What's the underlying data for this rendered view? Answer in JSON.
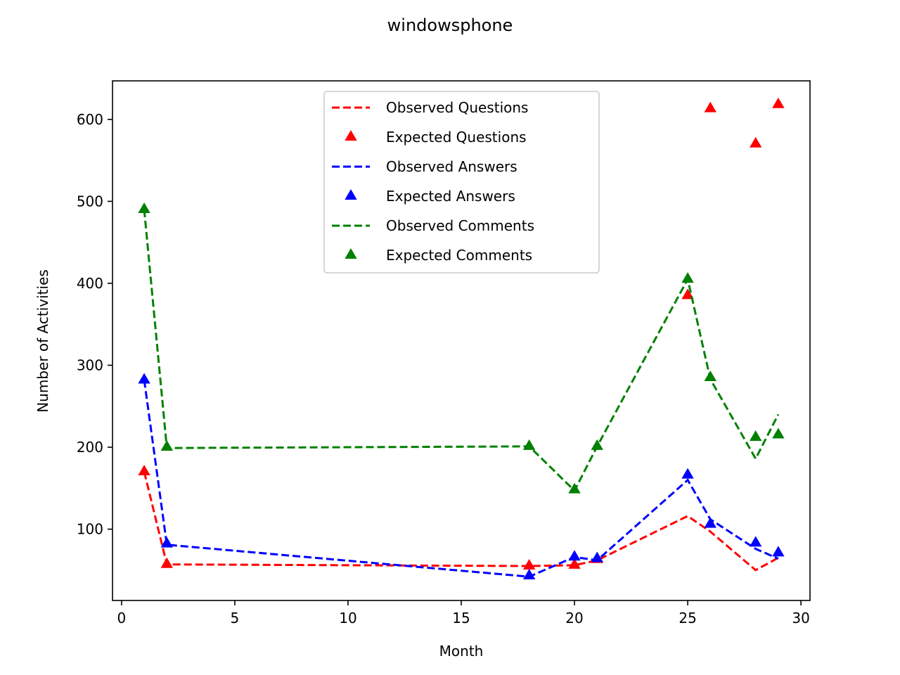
{
  "chart_data": {
    "type": "line",
    "title": "windowsphone",
    "xlabel": "Month",
    "ylabel": "Number of Activities",
    "xlim": [
      -0.4,
      30.4
    ],
    "ylim": [
      13,
      647
    ],
    "xticks": [
      0,
      5,
      10,
      15,
      20,
      25,
      30
    ],
    "yticks": [
      100,
      200,
      300,
      400,
      500,
      600
    ],
    "x": [
      1,
      2,
      18,
      20,
      21,
      25,
      26,
      28,
      29
    ],
    "grid": false,
    "legend_position": "top-center",
    "series": [
      {
        "name": "Observed Questions",
        "style": "dashed-line",
        "color": "#ff0000",
        "values": [
          170,
          57,
          55,
          56,
          62,
          116,
          97,
          50,
          65
        ]
      },
      {
        "name": "Expected Questions",
        "style": "triangle-marker",
        "color": "#ff0000",
        "values": [
          170,
          57,
          55,
          56,
          63,
          385,
          613,
          570,
          618
        ]
      },
      {
        "name": "Observed Answers",
        "style": "dashed-line",
        "color": "#0000ff",
        "values": [
          282,
          81,
          42,
          66,
          62,
          160,
          112,
          76,
          64
        ]
      },
      {
        "name": "Expected Answers",
        "style": "triangle-marker",
        "color": "#0000ff",
        "values": [
          282,
          82,
          43,
          66,
          64,
          166,
          106,
          83,
          71
        ]
      },
      {
        "name": "Observed Comments",
        "style": "dashed-line",
        "color": "#008000",
        "values": [
          490,
          199,
          201,
          147,
          201,
          405,
          283,
          186,
          240
        ]
      },
      {
        "name": "Expected Comments",
        "style": "triangle-marker",
        "color": "#008000",
        "values": [
          490,
          200,
          201,
          148,
          201,
          405,
          285,
          212,
          215
        ]
      }
    ]
  }
}
